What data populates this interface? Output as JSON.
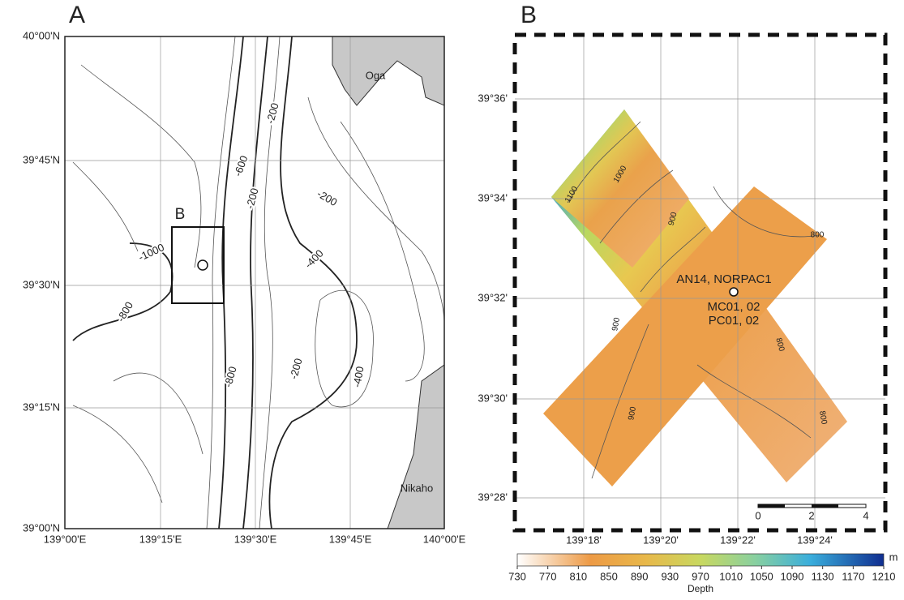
{
  "panel_a": {
    "label": "A",
    "lat_ticks": [
      "40°00'N",
      "39°45'N",
      "39°30'N",
      "39°15'N",
      "39°00'N"
    ],
    "lon_ticks": [
      "139°00'E",
      "139°15'E",
      "139°30'E",
      "139°45'E",
      "140°00'E"
    ],
    "contour_labels": [
      "-200",
      "-600",
      "-200",
      "-200",
      "-1000",
      "-400",
      "-800",
      "-800",
      "-200",
      "-400"
    ],
    "box_label": "B",
    "places": [
      "Oga",
      "Nikaho"
    ]
  },
  "panel_b": {
    "label": "B",
    "lat_ticks": [
      "39°36'",
      "39°34'",
      "39°32'",
      "39°30'",
      "39°28'"
    ],
    "lon_ticks": [
      "139°18'",
      "139°20'",
      "139°22'",
      "139°24'"
    ],
    "contour_labels": [
      "1100",
      "1000",
      "900",
      "800",
      "900",
      "900",
      "800",
      "800"
    ],
    "station_labels": [
      "AN14, NORPAC1",
      "MC01, 02",
      "PC01, 02"
    ],
    "scale_ticks": [
      "0",
      "2",
      "4"
    ],
    "colorbar": {
      "unit": "m",
      "title": "Depth",
      "ticks": [
        730,
        770,
        810,
        850,
        890,
        930,
        970,
        1010,
        1050,
        1090,
        1130,
        1170,
        1210
      ]
    }
  }
}
